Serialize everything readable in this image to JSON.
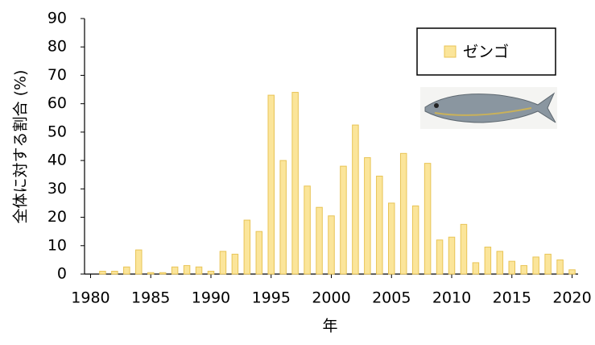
{
  "chart_data": {
    "type": "bar",
    "y_label": "全体に対する割合 (%)",
    "x_label": "年",
    "x": [
      1981,
      1982,
      1983,
      1984,
      1985,
      1986,
      1987,
      1988,
      1989,
      1990,
      1991,
      1992,
      1993,
      1994,
      1995,
      1996,
      1997,
      1998,
      1999,
      2000,
      2001,
      2002,
      2003,
      2004,
      2005,
      2006,
      2007,
      2008,
      2009,
      2010,
      2011,
      2012,
      2013,
      2014,
      2015,
      2016,
      2017,
      2018,
      2019,
      2020
    ],
    "series": [
      {
        "name": "ゼンゴ",
        "color": "#fbe59a",
        "edge": "#e8c456",
        "values": [
          1,
          1,
          2.5,
          8.5,
          0.5,
          0.5,
          2.5,
          3,
          2.5,
          1,
          8,
          7,
          19,
          15,
          63,
          40,
          64,
          31,
          23.5,
          20.5,
          38,
          52.5,
          41,
          34.5,
          25,
          42.5,
          24,
          39,
          12,
          13,
          17.5,
          4,
          9.5,
          8,
          4.5,
          3,
          6,
          7,
          5,
          1.5
        ]
      }
    ],
    "xlim": [
      1979.5,
      2020.5
    ],
    "xticks": [
      1980,
      1985,
      1990,
      1995,
      2000,
      2005,
      2010,
      2015,
      2020
    ],
    "ylim": [
      0,
      90
    ],
    "yticks": [
      0,
      10,
      20,
      30,
      40,
      50,
      60,
      70,
      80,
      90
    ],
    "legend": "upper right"
  }
}
